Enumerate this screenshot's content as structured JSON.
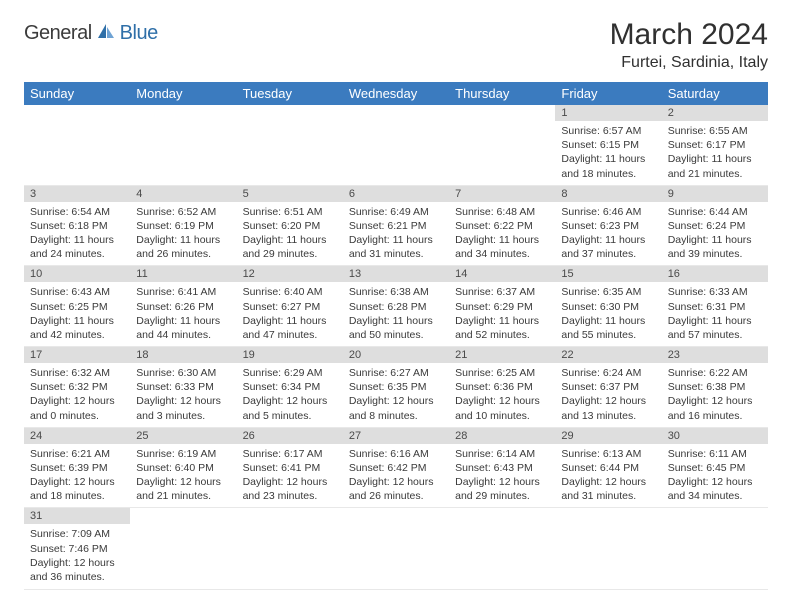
{
  "logo": {
    "part1": "General",
    "part2": "Blue"
  },
  "title": "March 2024",
  "location": "Furtei, Sardinia, Italy",
  "colors": {
    "header_bg": "#3b7bbf",
    "header_text": "#ffffff",
    "daynum_bg": "#dedede",
    "daynum_text": "#4a4a4a",
    "body_text": "#3a3a3a",
    "title_text": "#303030",
    "logo_gray": "#3b3b3b",
    "logo_blue": "#2f6fa8",
    "border": "#e8e8e8"
  },
  "typography": {
    "title_fontsize": 30,
    "location_fontsize": 16,
    "dayheader_fontsize": 13,
    "daynum_fontsize": 11,
    "body_fontsize": 10.5
  },
  "day_headers": [
    "Sunday",
    "Monday",
    "Tuesday",
    "Wednesday",
    "Thursday",
    "Friday",
    "Saturday"
  ],
  "weeks": [
    [
      {
        "blank": true
      },
      {
        "blank": true
      },
      {
        "blank": true
      },
      {
        "blank": true
      },
      {
        "blank": true
      },
      {
        "num": "1",
        "sunrise": "Sunrise: 6:57 AM",
        "sunset": "Sunset: 6:15 PM",
        "daylight": "Daylight: 11 hours and 18 minutes."
      },
      {
        "num": "2",
        "sunrise": "Sunrise: 6:55 AM",
        "sunset": "Sunset: 6:17 PM",
        "daylight": "Daylight: 11 hours and 21 minutes."
      }
    ],
    [
      {
        "num": "3",
        "sunrise": "Sunrise: 6:54 AM",
        "sunset": "Sunset: 6:18 PM",
        "daylight": "Daylight: 11 hours and 24 minutes."
      },
      {
        "num": "4",
        "sunrise": "Sunrise: 6:52 AM",
        "sunset": "Sunset: 6:19 PM",
        "daylight": "Daylight: 11 hours and 26 minutes."
      },
      {
        "num": "5",
        "sunrise": "Sunrise: 6:51 AM",
        "sunset": "Sunset: 6:20 PM",
        "daylight": "Daylight: 11 hours and 29 minutes."
      },
      {
        "num": "6",
        "sunrise": "Sunrise: 6:49 AM",
        "sunset": "Sunset: 6:21 PM",
        "daylight": "Daylight: 11 hours and 31 minutes."
      },
      {
        "num": "7",
        "sunrise": "Sunrise: 6:48 AM",
        "sunset": "Sunset: 6:22 PM",
        "daylight": "Daylight: 11 hours and 34 minutes."
      },
      {
        "num": "8",
        "sunrise": "Sunrise: 6:46 AM",
        "sunset": "Sunset: 6:23 PM",
        "daylight": "Daylight: 11 hours and 37 minutes."
      },
      {
        "num": "9",
        "sunrise": "Sunrise: 6:44 AM",
        "sunset": "Sunset: 6:24 PM",
        "daylight": "Daylight: 11 hours and 39 minutes."
      }
    ],
    [
      {
        "num": "10",
        "sunrise": "Sunrise: 6:43 AM",
        "sunset": "Sunset: 6:25 PM",
        "daylight": "Daylight: 11 hours and 42 minutes."
      },
      {
        "num": "11",
        "sunrise": "Sunrise: 6:41 AM",
        "sunset": "Sunset: 6:26 PM",
        "daylight": "Daylight: 11 hours and 44 minutes."
      },
      {
        "num": "12",
        "sunrise": "Sunrise: 6:40 AM",
        "sunset": "Sunset: 6:27 PM",
        "daylight": "Daylight: 11 hours and 47 minutes."
      },
      {
        "num": "13",
        "sunrise": "Sunrise: 6:38 AM",
        "sunset": "Sunset: 6:28 PM",
        "daylight": "Daylight: 11 hours and 50 minutes."
      },
      {
        "num": "14",
        "sunrise": "Sunrise: 6:37 AM",
        "sunset": "Sunset: 6:29 PM",
        "daylight": "Daylight: 11 hours and 52 minutes."
      },
      {
        "num": "15",
        "sunrise": "Sunrise: 6:35 AM",
        "sunset": "Sunset: 6:30 PM",
        "daylight": "Daylight: 11 hours and 55 minutes."
      },
      {
        "num": "16",
        "sunrise": "Sunrise: 6:33 AM",
        "sunset": "Sunset: 6:31 PM",
        "daylight": "Daylight: 11 hours and 57 minutes."
      }
    ],
    [
      {
        "num": "17",
        "sunrise": "Sunrise: 6:32 AM",
        "sunset": "Sunset: 6:32 PM",
        "daylight": "Daylight: 12 hours and 0 minutes."
      },
      {
        "num": "18",
        "sunrise": "Sunrise: 6:30 AM",
        "sunset": "Sunset: 6:33 PM",
        "daylight": "Daylight: 12 hours and 3 minutes."
      },
      {
        "num": "19",
        "sunrise": "Sunrise: 6:29 AM",
        "sunset": "Sunset: 6:34 PM",
        "daylight": "Daylight: 12 hours and 5 minutes."
      },
      {
        "num": "20",
        "sunrise": "Sunrise: 6:27 AM",
        "sunset": "Sunset: 6:35 PM",
        "daylight": "Daylight: 12 hours and 8 minutes."
      },
      {
        "num": "21",
        "sunrise": "Sunrise: 6:25 AM",
        "sunset": "Sunset: 6:36 PM",
        "daylight": "Daylight: 12 hours and 10 minutes."
      },
      {
        "num": "22",
        "sunrise": "Sunrise: 6:24 AM",
        "sunset": "Sunset: 6:37 PM",
        "daylight": "Daylight: 12 hours and 13 minutes."
      },
      {
        "num": "23",
        "sunrise": "Sunrise: 6:22 AM",
        "sunset": "Sunset: 6:38 PM",
        "daylight": "Daylight: 12 hours and 16 minutes."
      }
    ],
    [
      {
        "num": "24",
        "sunrise": "Sunrise: 6:21 AM",
        "sunset": "Sunset: 6:39 PM",
        "daylight": "Daylight: 12 hours and 18 minutes."
      },
      {
        "num": "25",
        "sunrise": "Sunrise: 6:19 AM",
        "sunset": "Sunset: 6:40 PM",
        "daylight": "Daylight: 12 hours and 21 minutes."
      },
      {
        "num": "26",
        "sunrise": "Sunrise: 6:17 AM",
        "sunset": "Sunset: 6:41 PM",
        "daylight": "Daylight: 12 hours and 23 minutes."
      },
      {
        "num": "27",
        "sunrise": "Sunrise: 6:16 AM",
        "sunset": "Sunset: 6:42 PM",
        "daylight": "Daylight: 12 hours and 26 minutes."
      },
      {
        "num": "28",
        "sunrise": "Sunrise: 6:14 AM",
        "sunset": "Sunset: 6:43 PM",
        "daylight": "Daylight: 12 hours and 29 minutes."
      },
      {
        "num": "29",
        "sunrise": "Sunrise: 6:13 AM",
        "sunset": "Sunset: 6:44 PM",
        "daylight": "Daylight: 12 hours and 31 minutes."
      },
      {
        "num": "30",
        "sunrise": "Sunrise: 6:11 AM",
        "sunset": "Sunset: 6:45 PM",
        "daylight": "Daylight: 12 hours and 34 minutes."
      }
    ],
    [
      {
        "num": "31",
        "sunrise": "Sunrise: 7:09 AM",
        "sunset": "Sunset: 7:46 PM",
        "daylight": "Daylight: 12 hours and 36 minutes."
      },
      {
        "blank": true
      },
      {
        "blank": true
      },
      {
        "blank": true
      },
      {
        "blank": true
      },
      {
        "blank": true
      },
      {
        "blank": true
      }
    ]
  ]
}
